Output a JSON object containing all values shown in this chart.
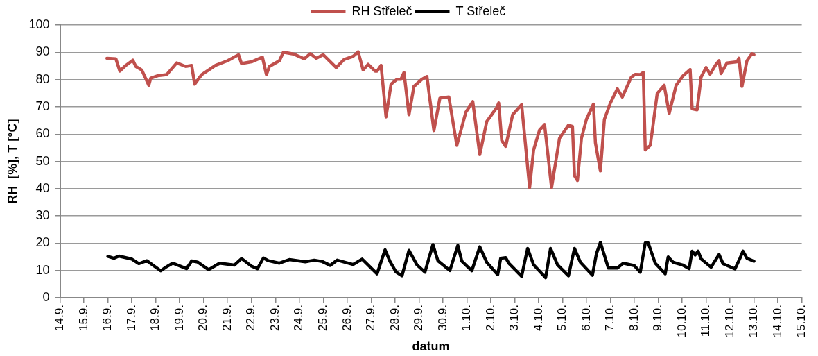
{
  "chart_data": {
    "type": "line",
    "xlabel": "datum",
    "ylabel": "RH  [%], T [°C]",
    "legend": "top",
    "grid": "y",
    "marker": "none",
    "line_style": "solid",
    "ylim": [
      0,
      100
    ],
    "yticks": [
      0,
      10,
      20,
      30,
      40,
      50,
      60,
      70,
      80,
      90,
      100
    ],
    "xlim": [
      "--09-14",
      "--10-15"
    ],
    "xticks": [
      {
        "value": "--09-14",
        "label": "14.9."
      },
      {
        "value": "--09-15",
        "label": "15.9."
      },
      {
        "value": "--09-16",
        "label": "16.9."
      },
      {
        "value": "--09-17",
        "label": "17.9."
      },
      {
        "value": "--09-18",
        "label": "18.9."
      },
      {
        "value": "--09-19",
        "label": "19.9."
      },
      {
        "value": "--09-20",
        "label": "20.9."
      },
      {
        "value": "--09-21",
        "label": "21.9."
      },
      {
        "value": "--09-22",
        "label": "22.9."
      },
      {
        "value": "--09-23",
        "label": "23.9."
      },
      {
        "value": "--09-24",
        "label": "24.9."
      },
      {
        "value": "--09-25",
        "label": "25.9."
      },
      {
        "value": "--09-26",
        "label": "26.9."
      },
      {
        "value": "--09-27",
        "label": "27.9."
      },
      {
        "value": "--09-28",
        "label": "28.9."
      },
      {
        "value": "--09-29",
        "label": "29.9."
      },
      {
        "value": "--09-30",
        "label": "30.9."
      },
      {
        "value": "--10-01",
        "label": "1.10."
      },
      {
        "value": "--10-02",
        "label": "2.10."
      },
      {
        "value": "--10-03",
        "label": "3.10."
      },
      {
        "value": "--10-04",
        "label": "4.10."
      },
      {
        "value": "--10-05",
        "label": "5.10."
      },
      {
        "value": "--10-06",
        "label": "6.10."
      },
      {
        "value": "--10-07",
        "label": "7.10."
      },
      {
        "value": "--10-08",
        "label": "8.10."
      },
      {
        "value": "--10-09",
        "label": "9.10."
      },
      {
        "value": "--10-10",
        "label": "10.10."
      },
      {
        "value": "--10-11",
        "label": "11.10."
      },
      {
        "value": "--10-12",
        "label": "12.10."
      },
      {
        "value": "--10-13",
        "label": "13.10."
      },
      {
        "value": "--10-14",
        "label": "14.10."
      },
      {
        "value": "--10-15",
        "label": "15.10."
      }
    ],
    "series": [
      {
        "name": "RH Střeleč",
        "color": "#c0504d",
        "x": [
          "--09-15T23:00",
          "--09-16T08:00",
          "--09-16T12:00",
          "--09-16T18:00",
          "--09-17T01:00",
          "--09-17T04:00",
          "--09-17T10:00",
          "--09-17T17:00",
          "--09-17T19:00",
          "--09-18T02:00",
          "--09-18T11:00",
          "--09-18T21:00",
          "--09-19T06:00",
          "--09-19T12:00",
          "--09-19T15:00",
          "--09-19T22:00",
          "--09-20T12:00",
          "--09-21T00:00",
          "--09-21T11:00",
          "--09-21T14:00",
          "--09-22T00:00",
          "--09-22T11:00",
          "--09-22T15:00",
          "--09-22T18:00",
          "--09-23T04:00",
          "--09-23T08:00",
          "--09-23T18:00",
          "--09-24T05:00",
          "--09-24T11:00",
          "--09-24T17:00",
          "--09-25T00:00",
          "--09-25T13:00",
          "--09-25T21:00",
          "--09-26T06:00",
          "--09-26T11:00",
          "--09-26T16:00",
          "--09-26T21:00",
          "--09-27T04:00",
          "--09-27T06:00",
          "--09-27T10:00",
          "--09-27T15:00",
          "--09-27T20:00",
          "--09-28T02:00",
          "--09-28T06:00",
          "--09-28T09:00",
          "--09-28T14:00",
          "--09-28T19:00",
          "--09-29T03:00",
          "--09-29T08:00",
          "--09-29T15:00",
          "--09-29T21:00",
          "--09-30T06:00",
          "--09-30T14:00",
          "--09-30T23:00",
          "--10-01T06:00",
          "--10-01T13:00",
          "--10-01T20:00",
          "--10-02T06:00",
          "--10-02T08:00",
          "--10-02T11:00",
          "--10-02T15:00",
          "--10-02T22:00",
          "--10-03T07:00",
          "--10-03T15:00",
          "--10-03T19:00",
          "--10-04T01:00",
          "--10-04T06:00",
          "--10-04T13:00",
          "--10-04T21:00",
          "--10-05T06:00",
          "--10-05T10:00",
          "--10-05T12:00",
          "--10-05T15:00",
          "--10-05T19:00",
          "--10-06T00:00",
          "--10-06T07:00",
          "--10-06T09:00",
          "--10-06T14:00",
          "--10-06T18:00",
          "--10-07T00:00",
          "--10-07T07:00",
          "--10-07T12:00",
          "--10-07T21:00",
          "--10-08T01:00",
          "--10-08T06:00",
          "--10-08T09:00",
          "--10-08T11:00",
          "--10-08T16:00",
          "--10-08T18:00",
          "--10-08T23:00",
          "--10-09T06:00",
          "--10-09T11:00",
          "--10-09T18:00",
          "--10-10T01:00",
          "--10-10T08:00",
          "--10-10T10:00",
          "--10-10T15:00",
          "--10-10T19:00",
          "--10-11T00:00",
          "--10-11T04:00",
          "--10-11T10:00",
          "--10-11T13:00",
          "--10-11T15:00",
          "--10-11T21:00",
          "--10-12T07:00",
          "--10-12T09:00",
          "--10-12T12:00",
          "--10-12T17:00",
          "--10-12T22:00",
          "--10-13T00:00"
        ],
        "values": [
          87.8,
          87.6,
          83.1,
          85.2,
          87.1,
          84.8,
          83.5,
          77.9,
          80.5,
          81.4,
          81.8,
          86.1,
          84.8,
          85.2,
          78.3,
          81.8,
          85.2,
          86.9,
          89.1,
          85.9,
          86.5,
          88.2,
          81.8,
          84.8,
          86.9,
          90.0,
          89.4,
          87.6,
          89.5,
          87.8,
          89.1,
          84.4,
          87.4,
          88.5,
          90.2,
          83.5,
          85.6,
          83.1,
          83.1,
          85.2,
          66.3,
          78.3,
          80.1,
          80.1,
          82.6,
          67.1,
          77.5,
          80.1,
          81.1,
          61.3,
          73.2,
          73.6,
          55.9,
          68.0,
          71.9,
          52.5,
          64.6,
          69.7,
          71.4,
          57.7,
          55.5,
          67.1,
          70.8,
          40.4,
          54.2,
          61.5,
          63.5,
          40.4,
          58.5,
          63.3,
          62.8,
          44.8,
          43.0,
          58.5,
          65.4,
          71.0,
          56.8,
          46.5,
          65.4,
          71.4,
          76.6,
          73.6,
          80.9,
          81.9,
          81.8,
          82.6,
          54.2,
          55.9,
          61.1,
          74.9,
          77.9,
          67.6,
          77.9,
          81.4,
          83.7,
          69.3,
          68.9,
          80.9,
          84.4,
          82.0,
          85.6,
          86.9,
          82.2,
          86.1,
          86.5,
          87.8,
          77.5,
          86.9,
          89.5,
          89.1
        ]
      },
      {
        "name": "T Střeleč",
        "color": "#000000",
        "x": [
          "--09-16T00:00",
          "--09-16T06:00",
          "--09-16T11:00",
          "--09-17T00:00",
          "--09-17T07:00",
          "--09-17T15:00",
          "--09-18T05:00",
          "--09-18T10:00",
          "--09-18T17:00",
          "--09-19T07:00",
          "--09-19T12:00",
          "--09-19T18:00",
          "--09-20T05:00",
          "--09-20T16:00",
          "--09-21T07:00",
          "--09-21T14:00",
          "--09-22T00:00",
          "--09-22T06:00",
          "--09-22T12:00",
          "--09-22T17:00",
          "--09-23T04:00",
          "--09-23T14:00",
          "--09-24T06:00",
          "--09-24T15:00",
          "--09-24T23:00",
          "--09-25T07:00",
          "--09-25T14:00",
          "--09-26T06:00",
          "--09-26T15:00",
          "--09-27T06:00",
          "--09-27T14:00",
          "--09-27T19:00",
          "--09-28T01:00",
          "--09-28T07:00",
          "--09-28T14:00",
          "--09-28T22:00",
          "--09-29T06:00",
          "--09-29T14:00",
          "--09-29T19:00",
          "--09-30T07:00",
          "--09-30T15:00",
          "--09-30T19:00",
          "--10-01T05:00",
          "--10-01T13:00",
          "--10-01T20:00",
          "--10-02T07:00",
          "--10-02T10:00",
          "--10-02T15:00",
          "--10-02T18:00",
          "--10-03T07:00",
          "--10-03T13:00",
          "--10-03T19:00",
          "--10-04T07:00",
          "--10-04T12:00",
          "--10-04T19:00",
          "--10-05T06:00",
          "--10-05T12:00",
          "--10-05T18:00",
          "--10-06T06:00",
          "--10-06T10:00",
          "--10-06T14:00",
          "--10-06T22:00",
          "--10-07T07:00",
          "--10-07T13:00",
          "--10-08T00:00",
          "--10-08T06:00",
          "--10-08T11:00",
          "--10-08T14:00",
          "--10-08T21:00",
          "--10-09T07:00",
          "--10-09T10:00",
          "--10-09T15:00",
          "--10-10T00:00",
          "--10-10T07:00",
          "--10-10T10:00",
          "--10-10T13:00",
          "--10-10T16:00",
          "--10-10T19:00",
          "--10-11T05:00",
          "--10-11T13:00",
          "--10-11T17:00",
          "--10-12T05:00",
          "--10-12T10:00",
          "--10-12T13:00",
          "--10-12T17:00",
          "--10-13T00:00"
        ],
        "values": [
          15.2,
          14.5,
          15.3,
          14.2,
          12.5,
          13.6,
          9.9,
          11.2,
          12.7,
          10.7,
          13.5,
          13.1,
          10.3,
          12.7,
          12.0,
          14.4,
          11.6,
          10.7,
          14.6,
          13.6,
          12.7,
          14.0,
          13.2,
          13.8,
          13.3,
          11.9,
          13.8,
          12.2,
          14.2,
          8.8,
          17.6,
          13.3,
          9.5,
          8.1,
          17.4,
          12.1,
          9.4,
          19.5,
          13.6,
          10.0,
          19.2,
          13.4,
          9.9,
          18.7,
          13.0,
          8.5,
          14.5,
          14.7,
          12.7,
          7.9,
          18.1,
          12.1,
          7.4,
          18.1,
          12.1,
          8.1,
          18.1,
          13.0,
          8.3,
          16.1,
          20.3,
          10.9,
          10.9,
          12.7,
          11.8,
          9.4,
          20.1,
          20.1,
          12.7,
          8.8,
          15.0,
          13.0,
          12.1,
          10.7,
          17.1,
          15.7,
          17.1,
          14.3,
          11.2,
          15.9,
          12.5,
          10.6,
          14.5,
          17.1,
          14.5,
          13.4
        ]
      }
    ]
  }
}
